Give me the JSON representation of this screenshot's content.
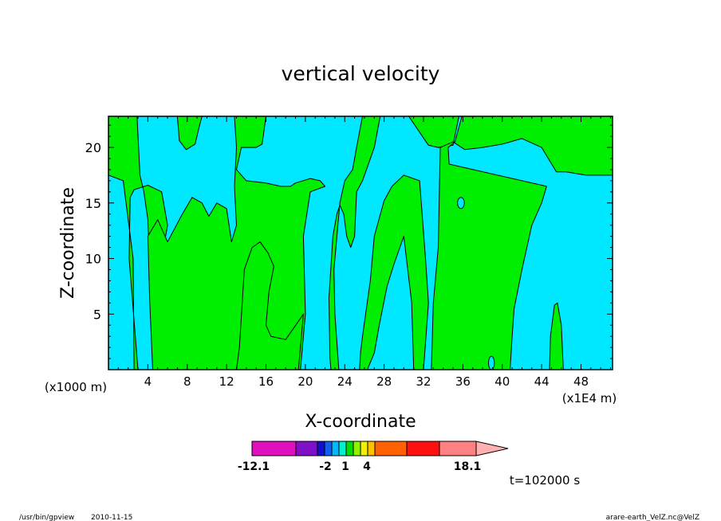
{
  "chart_data": {
    "type": "heatmap",
    "subtype": "filled-contour",
    "title": "vertical velocity",
    "xlabel": "X-coordinate",
    "ylabel": "Z-coordinate",
    "x_unit_left": "(x1000 m)",
    "x_unit_right": "(x1E4 m)",
    "xlim": [
      0,
      51.2
    ],
    "ylim": [
      0,
      22.8
    ],
    "x_ticks": [
      4,
      8,
      12,
      16,
      20,
      24,
      28,
      32,
      36,
      40,
      44,
      48
    ],
    "y_ticks": [
      5,
      10,
      15,
      20
    ],
    "fill_colors": {
      "negative": "#00e8ff",
      "positive": "#00ee00",
      "contour_line": "#000000"
    },
    "regions": [
      {
        "value": "positive",
        "polygon": [
          [
            3.0,
            0
          ],
          [
            2.1,
            10
          ],
          [
            2.2,
            15.5
          ],
          [
            2.6,
            16.2
          ],
          [
            4.0,
            16.6
          ],
          [
            5.4,
            16.0
          ],
          [
            6.0,
            13.0
          ],
          [
            5.6,
            11.0
          ],
          [
            5.0,
            8.0
          ],
          [
            4.9,
            5.0
          ],
          [
            4.4,
            8.0
          ],
          [
            4.1,
            11.0
          ],
          [
            4.0,
            13.5
          ],
          [
            3.6,
            16.0
          ],
          [
            3.2,
            17.5
          ],
          [
            2.9,
            22.8
          ],
          [
            35.6,
            22.8
          ],
          [
            35.0,
            20.2
          ],
          [
            33.5,
            20.0
          ],
          [
            32.5,
            20.2
          ],
          [
            30.5,
            22.8
          ],
          [
            0,
            22.8
          ],
          [
            0,
            17.5
          ],
          [
            1.5,
            17.0
          ],
          [
            2.5,
            10.0
          ],
          [
            2.6,
            0
          ]
        ]
      },
      {
        "value": "positive",
        "polygon": [
          [
            4.5,
            0
          ],
          [
            4.2,
            6.0
          ],
          [
            4.0,
            12.0
          ],
          [
            5.0,
            13.5
          ],
          [
            6.0,
            11.5
          ],
          [
            7.5,
            14.0
          ],
          [
            8.5,
            15.5
          ],
          [
            9.5,
            15.0
          ],
          [
            10.2,
            13.8
          ],
          [
            11.0,
            15.0
          ],
          [
            12.0,
            14.5
          ],
          [
            12.5,
            11.5
          ],
          [
            13.0,
            13.0
          ],
          [
            12.8,
            16.5
          ],
          [
            13.0,
            20.0
          ],
          [
            12.8,
            22.8
          ],
          [
            16.0,
            22.8
          ],
          [
            15.6,
            20.3
          ],
          [
            15.0,
            20.0
          ],
          [
            13.5,
            20.0
          ],
          [
            13.0,
            18.0
          ],
          [
            14.0,
            17.0
          ],
          [
            16.0,
            16.8
          ],
          [
            17.5,
            16.5
          ],
          [
            18.5,
            16.5
          ],
          [
            19.0,
            16.8
          ],
          [
            20.5,
            17.2
          ],
          [
            21.5,
            17.0
          ],
          [
            22.0,
            16.5
          ],
          [
            20.5,
            16.0
          ],
          [
            19.8,
            12.0
          ],
          [
            20.0,
            5.0
          ],
          [
            19.5,
            0
          ]
        ]
      },
      {
        "value": "positive",
        "polygon": [
          [
            7.0,
            22.8
          ],
          [
            7.2,
            20.6
          ],
          [
            7.9,
            19.8
          ],
          [
            8.8,
            20.3
          ],
          [
            9.2,
            21.8
          ],
          [
            9.5,
            22.8
          ]
        ]
      },
      {
        "value": "positive",
        "polygon": [
          [
            13.0,
            0
          ],
          [
            13.3,
            2.0
          ],
          [
            13.8,
            9.0
          ],
          [
            14.6,
            11.0
          ],
          [
            15.4,
            11.5
          ],
          [
            16.2,
            10.5
          ],
          [
            16.8,
            9.3
          ],
          [
            16.3,
            7.0
          ],
          [
            16.0,
            4.0
          ],
          [
            16.5,
            3.0
          ],
          [
            18.0,
            2.7
          ],
          [
            19.8,
            5.0
          ],
          [
            19.3,
            0
          ]
        ]
      },
      {
        "value": "positive",
        "polygon": [
          [
            22.6,
            0
          ],
          [
            22.5,
            1.0
          ],
          [
            22.4,
            6.5
          ],
          [
            22.8,
            12.0
          ],
          [
            23.2,
            14.0
          ],
          [
            23.5,
            14.8
          ],
          [
            23.9,
            14.0
          ],
          [
            24.2,
            12.0
          ],
          [
            24.6,
            11.0
          ],
          [
            25.0,
            12.0
          ],
          [
            25.2,
            16.0
          ],
          [
            25.8,
            17.0
          ],
          [
            27.0,
            20.0
          ],
          [
            27.6,
            22.8
          ],
          [
            25.8,
            22.8
          ],
          [
            25.2,
            20.0
          ],
          [
            24.8,
            18.0
          ],
          [
            24.0,
            17.0
          ],
          [
            23.5,
            15.0
          ],
          [
            23.2,
            12.0
          ],
          [
            22.9,
            9.0
          ],
          [
            23.0,
            5.0
          ],
          [
            23.4,
            0
          ]
        ]
      },
      {
        "value": "positive",
        "polygon": [
          [
            25.5,
            0
          ],
          [
            25.6,
            1.5
          ],
          [
            25.8,
            3.0
          ],
          [
            26.6,
            8.0
          ],
          [
            27.0,
            12.0
          ],
          [
            28.0,
            15.2
          ],
          [
            28.8,
            16.5
          ],
          [
            30.0,
            17.5
          ],
          [
            31.6,
            17.0
          ],
          [
            32.2,
            10.0
          ],
          [
            32.5,
            6.0
          ],
          [
            32.0,
            0
          ],
          [
            31.0,
            0
          ],
          [
            30.8,
            6.0
          ],
          [
            30.0,
            12.0
          ],
          [
            29.0,
            9.5
          ],
          [
            28.3,
            7.5
          ],
          [
            27.5,
            4.0
          ],
          [
            27.0,
            1.5
          ],
          [
            26.3,
            0
          ]
        ]
      },
      {
        "value": "positive",
        "polygon": [
          [
            32.8,
            0
          ],
          [
            33.0,
            6.0
          ],
          [
            33.5,
            11.0
          ],
          [
            33.7,
            20.0
          ],
          [
            35.0,
            20.5
          ],
          [
            36.2,
            19.8
          ],
          [
            38.0,
            20.0
          ],
          [
            40.0,
            20.3
          ],
          [
            42.0,
            20.8
          ],
          [
            44.0,
            20.0
          ],
          [
            45.5,
            17.8
          ],
          [
            46.5,
            17.8
          ],
          [
            48.5,
            17.5
          ],
          [
            51.2,
            17.5
          ],
          [
            51.2,
            22.8
          ],
          [
            35.9,
            22.8
          ],
          [
            35.2,
            20.5
          ],
          [
            34.5,
            20.0
          ],
          [
            34.6,
            18.5
          ],
          [
            44.5,
            16.5
          ],
          [
            44.0,
            15.0
          ],
          [
            43.0,
            13.0
          ],
          [
            42.0,
            9.0
          ],
          [
            41.2,
            5.5
          ],
          [
            41.0,
            3.0
          ],
          [
            40.8,
            0
          ]
        ]
      },
      {
        "value": "positive",
        "polygon": [
          [
            44.8,
            0
          ],
          [
            44.9,
            3.0
          ],
          [
            45.3,
            5.8
          ],
          [
            45.6,
            6.0
          ],
          [
            46.0,
            4.0
          ],
          [
            46.2,
            0
          ]
        ]
      }
    ],
    "spots": [
      {
        "value": "negative",
        "center": [
          35.8,
          15.0
        ],
        "radius": [
          0.35,
          0.5
        ]
      },
      {
        "value": "negative",
        "center": [
          38.9,
          0.6
        ],
        "radius": [
          0.3,
          0.6
        ]
      }
    ],
    "colorbar": {
      "colors": [
        "#e010c0",
        "#8010c8",
        "#1010d0",
        "#1060f0",
        "#00b8ff",
        "#00f0d0",
        "#00dc00",
        "#90f000",
        "#f0f000",
        "#ffc000",
        "#ff6000",
        "#ff1010",
        "#ff8080",
        "#ffb0b0"
      ],
      "min_label": "-12.1",
      "labels": [
        "-2",
        "1",
        "4"
      ],
      "max_label": "18.1"
    }
  },
  "annotations": {
    "time": "t=102000 s",
    "program": "/usr/bin/gpview",
    "date": "2010-11-15",
    "source": "arare-earth_VelZ.nc@VelZ"
  }
}
